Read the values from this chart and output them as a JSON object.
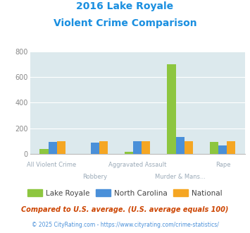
{
  "title_line1": "2016 Lake Royale",
  "title_line2": "Violent Crime Comparison",
  "categories": [
    "All Violent Crime",
    "Robbery",
    "Aggravated Assault",
    "Murder & Mans...",
    "Rape"
  ],
  "lake_royale": [
    35,
    0,
    15,
    700,
    90
  ],
  "north_carolina": [
    95,
    85,
    100,
    130,
    65
  ],
  "national": [
    100,
    100,
    100,
    100,
    100
  ],
  "colors": {
    "lake_royale": "#8dc63f",
    "north_carolina": "#4a90d9",
    "national": "#f5a623"
  },
  "ylim": [
    0,
    800
  ],
  "yticks": [
    0,
    200,
    400,
    600,
    800
  ],
  "plot_bg": "#dce9ed",
  "title_color": "#1a8fe0",
  "xlabel_color": "#9baab8",
  "footer_text": "Compared to U.S. average. (U.S. average equals 100)",
  "copyright_text": "© 2025 CityRating.com - https://www.cityrating.com/crime-statistics/",
  "legend_labels": [
    "Lake Royale",
    "North Carolina",
    "National"
  ],
  "bar_width": 0.2,
  "figsize": [
    3.55,
    3.3
  ],
  "dpi": 100
}
